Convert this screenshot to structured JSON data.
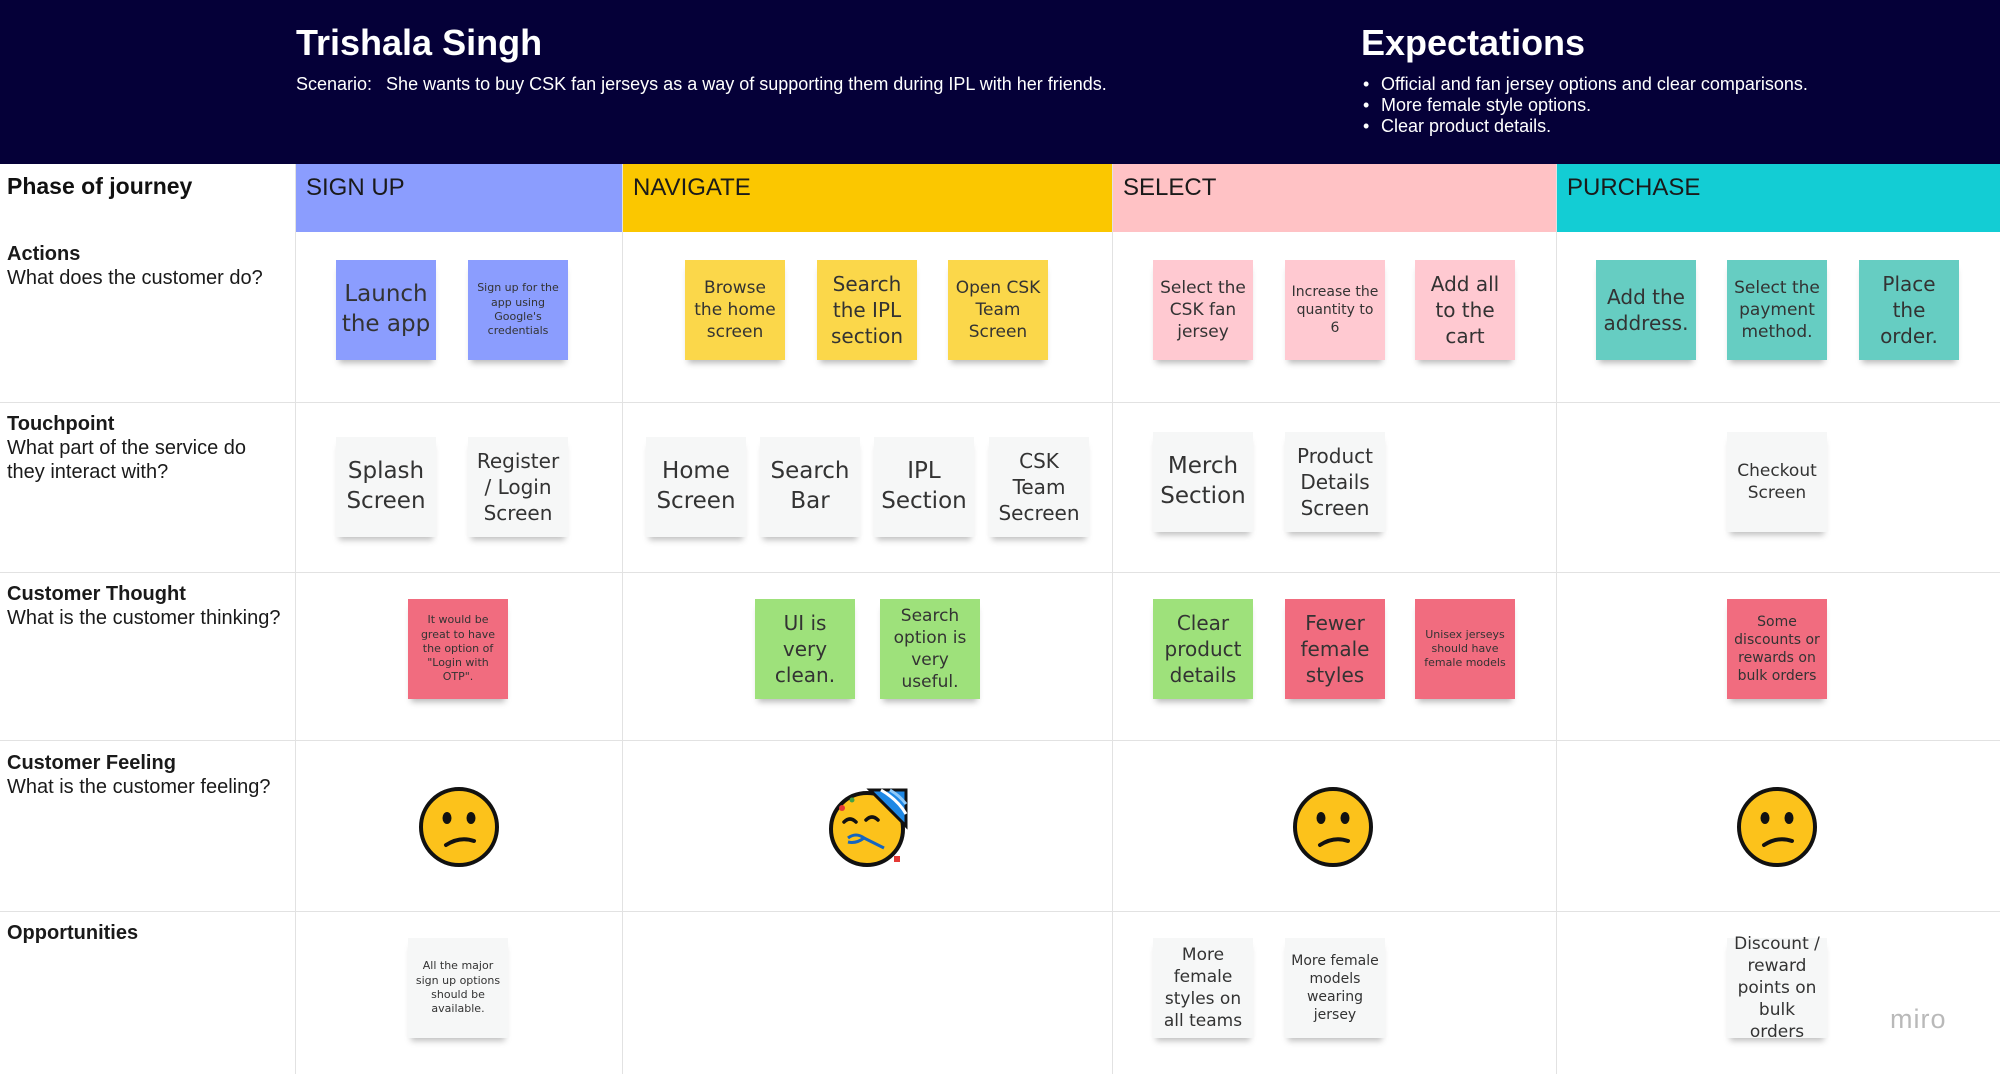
{
  "persona": {
    "name": "Trishala Singh",
    "scenario_label": "Scenario:",
    "scenario_text": "She wants to buy CSK fan jerseys as a way of supporting them during IPL with her friends."
  },
  "expectations": {
    "title": "Expectations",
    "items": [
      "Official and fan jersey options and clear comparisons.",
      "More female style options.",
      "Clear product details."
    ]
  },
  "phase_label": "Phase of journey",
  "phases": [
    {
      "label": "SIGN UP",
      "color": "#8b9dfe"
    },
    {
      "label": "NAVIGATE",
      "color": "#fbc700"
    },
    {
      "label": "SELECT",
      "color": "#ffc2c5"
    },
    {
      "label": "PURCHASE",
      "color": "#13cdd4"
    }
  ],
  "rows": [
    {
      "title": "Actions",
      "subtitle": "What does the customer do?"
    },
    {
      "title": "Touchpoint",
      "subtitle": "What part of the service do they interact with?"
    },
    {
      "title": "Customer Thought",
      "subtitle": "What is the customer thinking?"
    },
    {
      "title": "Customer Feeling",
      "subtitle": "What is the customer feeling?"
    },
    {
      "title": "Opportunities",
      "subtitle": ""
    }
  ],
  "actions": {
    "signup": [
      "Launch the app",
      "Sign up for the app using Google's credentials"
    ],
    "navigate": [
      "Browse the home screen",
      "Search the IPL section",
      "Open CSK Team Screen"
    ],
    "select": [
      "Select the CSK fan jersey",
      "Increase the quantity to 6",
      "Add all to the cart"
    ],
    "purchase": [
      "Add the address.",
      "Select the payment method.",
      "Place the order."
    ]
  },
  "touchpoints": {
    "signup": [
      "Splash Screen",
      "Register / Login Screen"
    ],
    "navigate": [
      "Home Screen",
      "Search Bar",
      "IPL Section",
      "CSK Team Secreen"
    ],
    "select": [
      "Merch Section",
      "Product Details Screen"
    ],
    "purchase": [
      "Checkout Screen"
    ]
  },
  "thoughts": {
    "signup": [
      "It would be great to have the option of \"Login with OTP\"."
    ],
    "navigate": [
      "UI is very clean.",
      "Search option is very useful."
    ],
    "select": [
      "Clear product details",
      "Fewer female styles",
      "Unisex jerseys should have female models"
    ],
    "purchase": [
      "Some discounts or rewards on bulk orders"
    ]
  },
  "feelings": {
    "signup": "confused-face-icon",
    "navigate": "partying-face-icon",
    "select": "confused-face-icon",
    "purchase": "confused-face-icon"
  },
  "opportunities": {
    "signup": [
      "All the major sign up options should be available."
    ],
    "select": [
      "More female styles on all teams",
      "More female models wearing jersey"
    ],
    "purchase": [
      "Discount / reward points on bulk orders"
    ]
  },
  "note_colors": {
    "signup": "#8b9dfe",
    "navigate": "#fbd74a",
    "select": "#ffc9d1",
    "purchase": "#66cdc2",
    "green": "#9ee17b",
    "red": "#f16c7f",
    "white": "#f6f7f7"
  },
  "brand": "miro"
}
